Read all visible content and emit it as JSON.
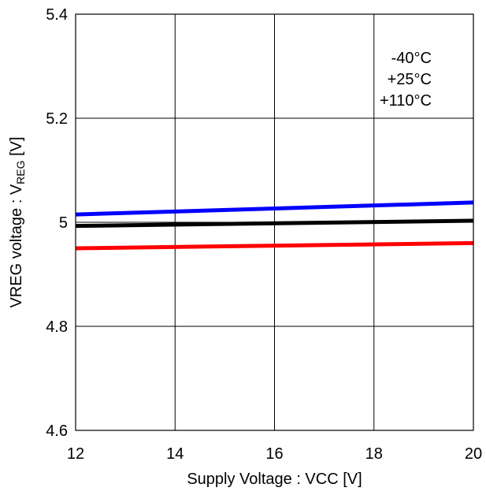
{
  "chart_data": {
    "type": "line",
    "title": "",
    "xlabel": "Supply Voltage : VCC [V]",
    "ylabel": {
      "main": "VREG voltage : V",
      "subscript": "REG",
      "suffix": " [V]"
    },
    "xlim": [
      12,
      20
    ],
    "ylim": [
      4.6,
      5.4
    ],
    "xticks": [
      12,
      14,
      16,
      18,
      20
    ],
    "yticks": [
      4.6,
      4.8,
      5,
      5.2,
      5.4
    ],
    "xtick_labels": [
      "12",
      "14",
      "16",
      "18",
      "20"
    ],
    "ytick_labels": [
      "4.6",
      "4.8",
      "5",
      "5.2",
      "5.4"
    ],
    "grid": true,
    "legend_position": "top-right",
    "legend_labels": [
      "-40°C",
      "+25°C",
      "+110°C"
    ],
    "series": [
      {
        "color": "#0000ff",
        "x": [
          12,
          20
        ],
        "y": [
          5.015,
          5.038
        ]
      },
      {
        "color": "#000000",
        "x": [
          12,
          20
        ],
        "y": [
          4.993,
          5.003
        ]
      },
      {
        "color": "#ff0000",
        "x": [
          12,
          20
        ],
        "y": [
          4.95,
          4.96
        ]
      }
    ]
  }
}
